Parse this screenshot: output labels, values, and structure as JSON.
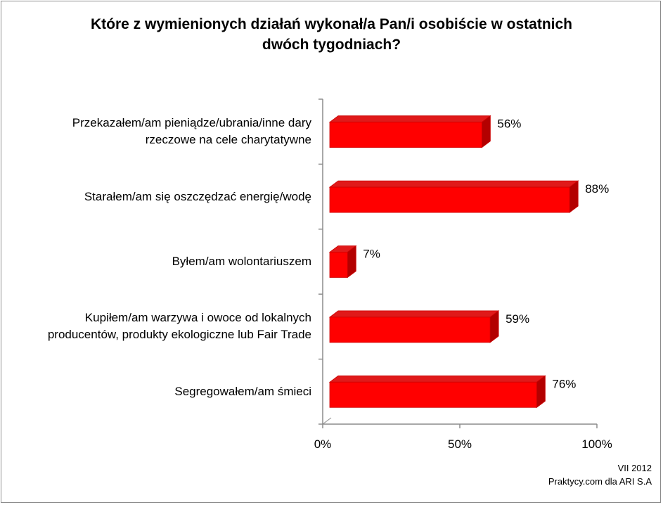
{
  "chart_data": {
    "type": "bar",
    "orientation": "horizontal",
    "three_d": true,
    "title": "Które z wymienionych działań wykonał/a Pan/i osobiście w ostatnich dwóch tygodniach?",
    "title_lines": [
      "Które z wymienionych działań wykonał/a Pan/i osobiście w ostatnich",
      "dwóch tygodniach?"
    ],
    "categories": [
      "Przekazałem/am pieniądze/ubrania/inne dary rzeczowe na cele charytatywne",
      "Starałem/am się oszczędzać energię/wodę",
      "Byłem/am wolontariuszem",
      "Kupiłem/am warzywa i owoce od lokalnych producentów, produkty ekologiczne lub Fair Trade",
      "Segregowałem/am śmieci"
    ],
    "category_lines": [
      [
        "Przekazałem/am pieniądze/ubrania/inne dary",
        "rzeczowe na cele charytatywne"
      ],
      [
        "Starałem/am się oszczędzać energię/wodę"
      ],
      [
        "Byłem/am wolontariuszem"
      ],
      [
        "Kupiłem/am warzywa i owoce od lokalnych",
        "producentów, produkty ekologiczne lub Fair Trade"
      ],
      [
        "Segregowałem/am śmieci"
      ]
    ],
    "values": [
      56,
      88,
      7,
      59,
      76
    ],
    "data_labels": [
      "56%",
      "88%",
      "7%",
      "59%",
      "76%"
    ],
    "xlim": [
      0,
      100
    ],
    "xticks": [
      0,
      50,
      100
    ],
    "xtick_labels": [
      "0%",
      "50%",
      "100%"
    ],
    "xlabel": "",
    "ylabel": "",
    "grid": false,
    "legend": "none",
    "colors": {
      "bar_front": "#ff0000",
      "bar_top": "#e01a1a",
      "bar_side": "#b30000",
      "bar_edge": "#cc0000",
      "axis": "#8c8c8c"
    }
  },
  "footer": {
    "date": "VII 2012",
    "source": "Praktycy.com dla ARI S.A"
  }
}
